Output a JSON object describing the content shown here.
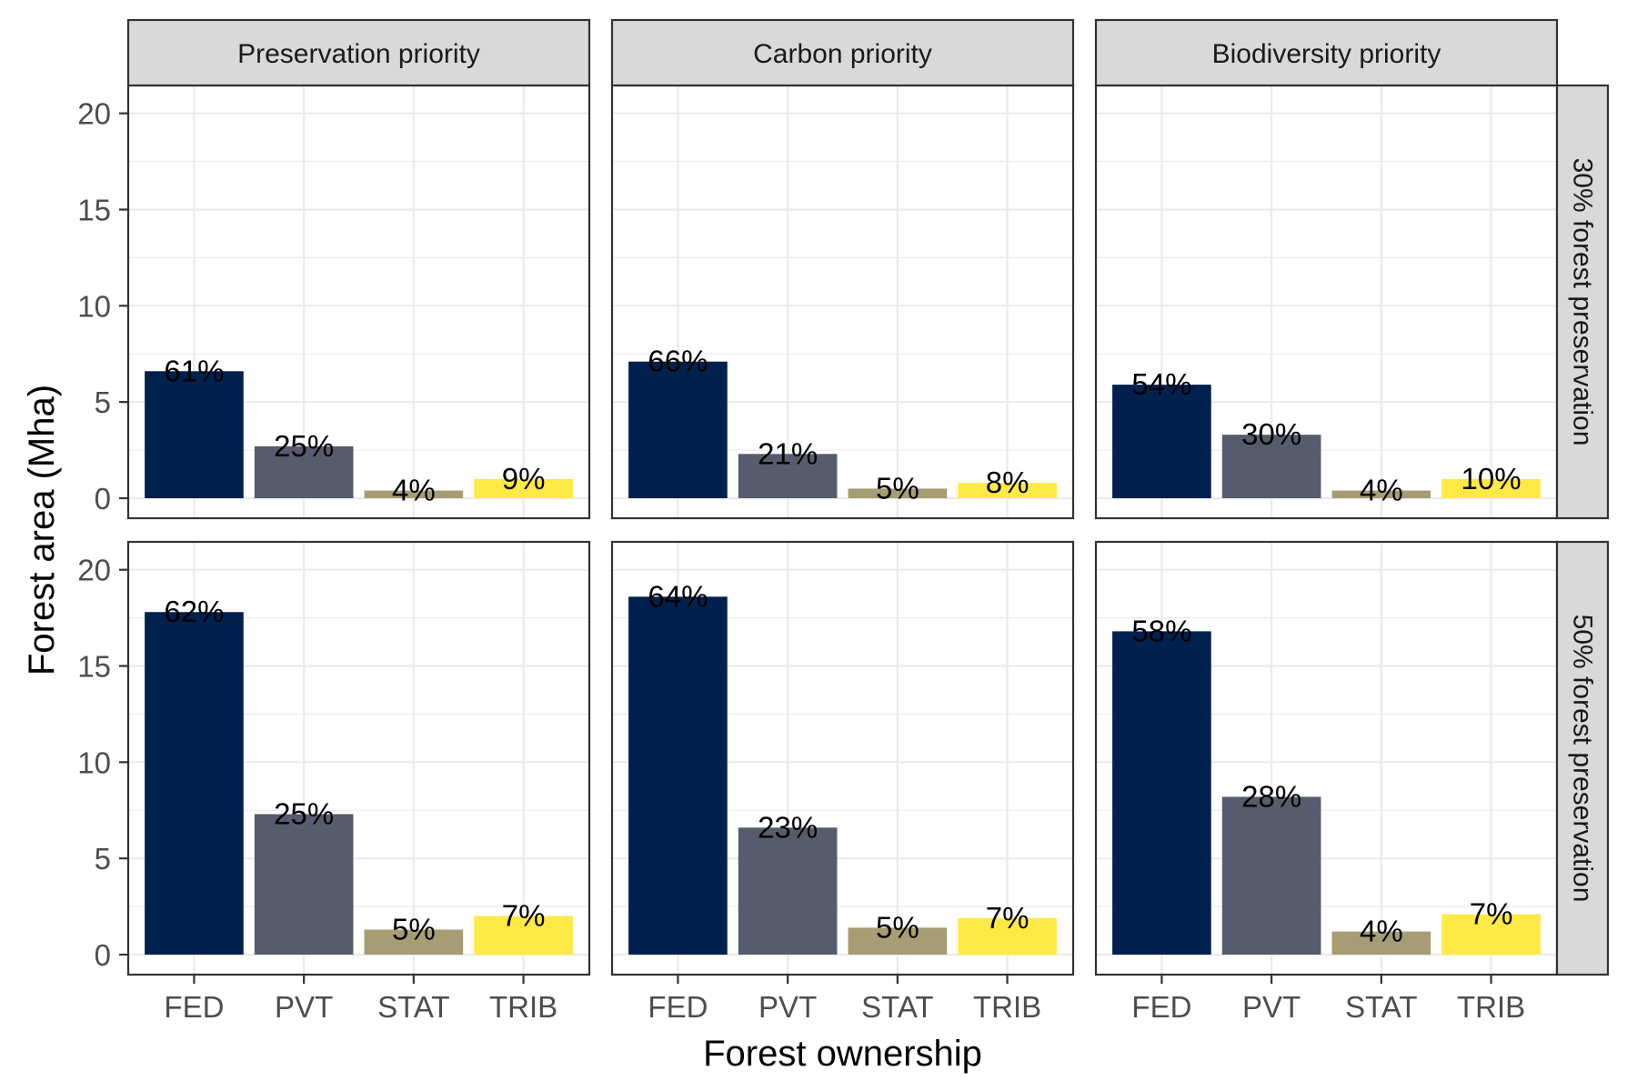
{
  "chart_data": {
    "type": "bar",
    "xlabel": "Forest ownership",
    "ylabel": "Forest area (Mha)",
    "categories": [
      "FED",
      "PVT",
      "STAT",
      "TRIB"
    ],
    "ylim": [
      0,
      21
    ],
    "y_ticks": [
      0,
      5,
      10,
      15,
      20
    ],
    "grid": true,
    "facet_columns": [
      "Preservation priority",
      "Carbon priority",
      "Biodiversity priority"
    ],
    "facet_rows": [
      "30% forest preservation",
      "50% forest preservation"
    ],
    "colors": {
      "FED": "#00204d",
      "PVT": "#575c6d",
      "STAT": "#a69d75",
      "TRIB": "#ffe945"
    },
    "panels": [
      {
        "column": "Preservation priority",
        "row": "30% forest preservation",
        "values": [
          6.6,
          2.7,
          0.4,
          1.0
        ],
        "labels": [
          "61%",
          "25%",
          "4%",
          "9%"
        ]
      },
      {
        "column": "Carbon priority",
        "row": "30% forest preservation",
        "values": [
          7.1,
          2.3,
          0.5,
          0.8
        ],
        "labels": [
          "66%",
          "21%",
          "5%",
          "8%"
        ]
      },
      {
        "column": "Biodiversity priority",
        "row": "30% forest preservation",
        "values": [
          5.9,
          3.3,
          0.4,
          1.0
        ],
        "labels": [
          "54%",
          "30%",
          "4%",
          "10%"
        ]
      },
      {
        "column": "Preservation priority",
        "row": "50% forest preservation",
        "values": [
          17.8,
          7.3,
          1.3,
          2.0
        ],
        "labels": [
          "62%",
          "25%",
          "5%",
          "7%"
        ]
      },
      {
        "column": "Carbon priority",
        "row": "50% forest preservation",
        "values": [
          18.6,
          6.6,
          1.4,
          1.9
        ],
        "labels": [
          "64%",
          "23%",
          "5%",
          "7%"
        ]
      },
      {
        "column": "Biodiversity priority",
        "row": "50% forest preservation",
        "values": [
          16.8,
          8.2,
          1.2,
          2.1
        ],
        "labels": [
          "58%",
          "28%",
          "4%",
          "7%"
        ]
      }
    ]
  }
}
